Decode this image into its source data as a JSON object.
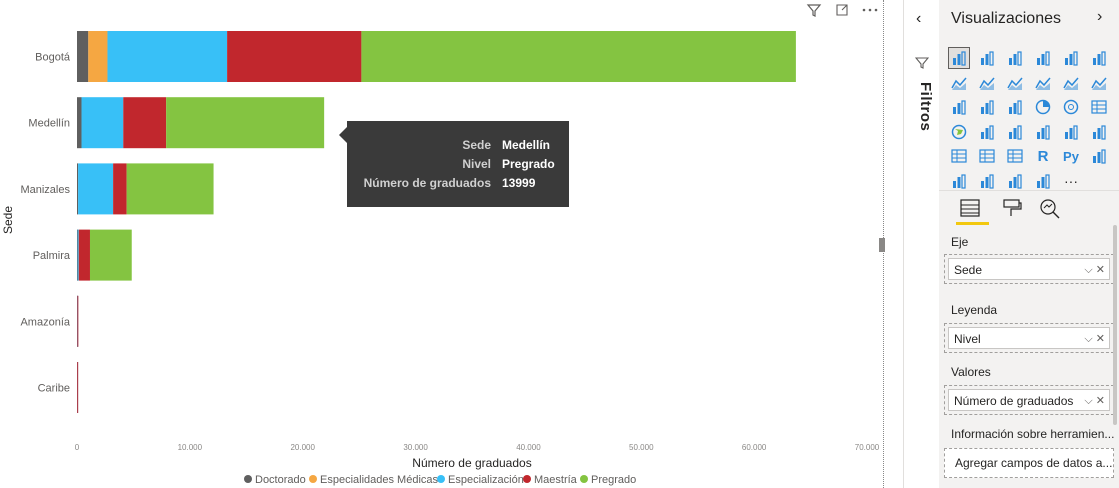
{
  "chart_data": {
    "type": "bar",
    "orientation": "horizontal",
    "stacked": true,
    "xlabel": "Número de graduados",
    "ylabel": "Sede",
    "xlim": [
      0,
      70000
    ],
    "x_ticks": [
      "0",
      "10.000",
      "20.000",
      "30.000",
      "40.000",
      "50.000",
      "60.000",
      "70.000"
    ],
    "categories": [
      "Bogotá",
      "Medellín",
      "Manizales",
      "Palmira",
      "Amazonía",
      "Caribe"
    ],
    "series": [
      {
        "name": "Doctorado",
        "color": "#5f5f5f",
        "values": [
          1000,
          400,
          100,
          50,
          10,
          5
        ]
      },
      {
        "name": "Especialidades Médicas",
        "color": "#f5a742",
        "values": [
          1700,
          0,
          0,
          0,
          0,
          0
        ]
      },
      {
        "name": "Especialización",
        "color": "#38c0f7",
        "values": [
          10600,
          3700,
          3100,
          100,
          20,
          10
        ]
      },
      {
        "name": "Maestría",
        "color": "#c1272d",
        "values": [
          11900,
          3800,
          1200,
          1000,
          40,
          30
        ]
      },
      {
        "name": "Pregrado",
        "color": "#84c441",
        "values": [
          38500,
          13999,
          7700,
          3700,
          0,
          0
        ]
      }
    ],
    "legend_position": "bottom",
    "grid": false
  },
  "tooltip": {
    "rows": [
      {
        "key": "Sede",
        "value": "Medellín"
      },
      {
        "key": "Nivel",
        "value": "Pregrado"
      },
      {
        "key": "Número de graduados",
        "value": "13999"
      }
    ]
  },
  "header_icons": [
    "filter-icon",
    "focus-mode-icon",
    "more-options-icon"
  ],
  "filters_pane": {
    "label": "Filtros"
  },
  "viz_pane": {
    "title": "Visualizaciones",
    "fields": [
      {
        "label": "Eje",
        "value": "Sede"
      },
      {
        "label": "Leyenda",
        "value": "Nivel"
      },
      {
        "label": "Valores",
        "value": "Número de graduados"
      }
    ],
    "tooltip_section": "Información sobre herramien...",
    "tooltip_placeholder": "Agregar campos de datos a...",
    "more_label": "···"
  }
}
